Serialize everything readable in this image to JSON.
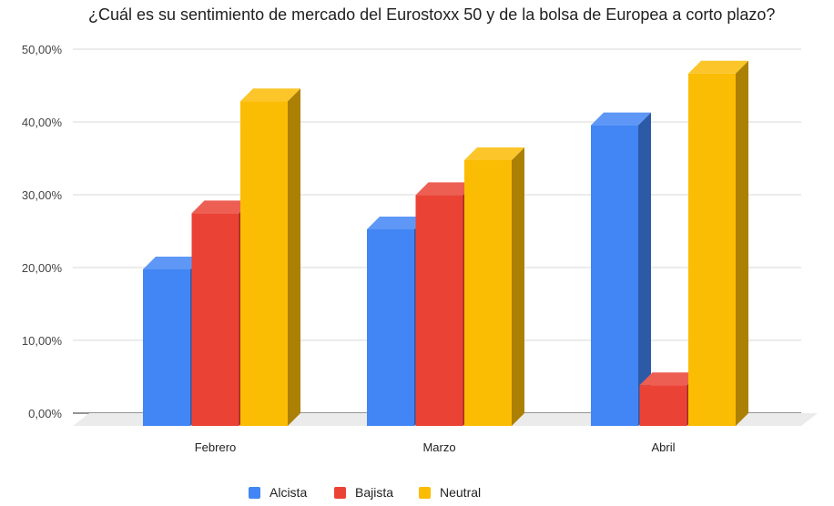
{
  "chart_data": {
    "type": "bar",
    "title": "¿Cuál es su sentimiento de mercado del Eurostoxx 50 y de la bolsa de Europea a corto plazo?",
    "xlabel": "",
    "ylabel": "",
    "categories": [
      "Febrero",
      "Marzo",
      "Abril"
    ],
    "series": [
      {
        "name": "Alcista",
        "values": [
          21.5,
          27.0,
          41.3
        ],
        "color": "#4285f4"
      },
      {
        "name": "Bajista",
        "values": [
          29.2,
          31.7,
          5.6
        ],
        "color": "#ea4335"
      },
      {
        "name": "Neutral",
        "values": [
          44.6,
          36.5,
          48.4
        ],
        "color": "#fbbc04"
      }
    ],
    "ylim": [
      0,
      50
    ],
    "yticks": [
      "0,00%",
      "10,00%",
      "20,00%",
      "30,00%",
      "40,00%",
      "50,00%"
    ],
    "grid": true,
    "legend": "bottom",
    "style": "3d"
  }
}
